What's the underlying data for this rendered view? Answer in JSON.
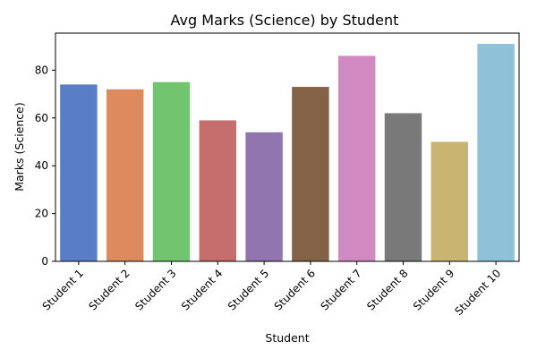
{
  "chart_data": {
    "type": "bar",
    "title": "Avg Marks (Science) by Student",
    "xlabel": "Student",
    "ylabel": "Marks (Science)",
    "categories": [
      "Student 1",
      "Student 2",
      "Student 3",
      "Student 4",
      "Student 5",
      "Student 6",
      "Student 7",
      "Student 8",
      "Student 9",
      "Student 10"
    ],
    "values": [
      74,
      72,
      75,
      59,
      54,
      73,
      86,
      62,
      50,
      91
    ],
    "colors": [
      "#5a7ec6",
      "#dc8a5e",
      "#73c46f",
      "#c66d6d",
      "#9175ae",
      "#836247",
      "#d189c1",
      "#797979",
      "#c9b471",
      "#8dc2d8"
    ],
    "ylim": [
      0,
      95.5
    ],
    "yticks": [
      0,
      20,
      40,
      60,
      80
    ],
    "grid": false,
    "legend": "none"
  }
}
